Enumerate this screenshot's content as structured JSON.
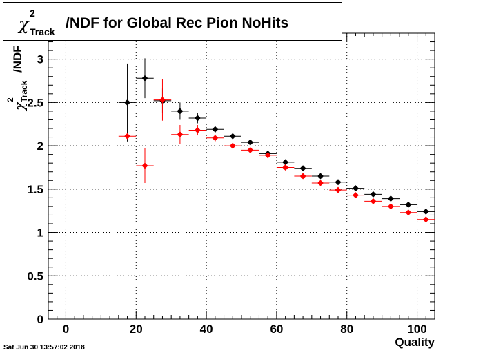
{
  "title": {
    "symbol": "χ",
    "superscript": "2",
    "subscript": "Track",
    "text": "/NDF for Global Rec Pion NoHits"
  },
  "timestamp": "Sat Jun 30 13:57:02 2018",
  "chart_data": {
    "type": "scatter",
    "xlabel": "Quality",
    "ylabel": {
      "symbol": "χ",
      "superscript": "2",
      "subscript": "Track",
      "text": "/NDF"
    },
    "xlim": [
      -5,
      105
    ],
    "ylim": [
      0,
      3.3
    ],
    "xticks": [
      0,
      20,
      40,
      60,
      80,
      100
    ],
    "yticks": [
      0,
      0.5,
      1,
      1.5,
      2,
      2.5,
      3
    ],
    "ytick_labels": [
      "0",
      "0.5",
      "1",
      "1.5",
      "2",
      "2.5",
      "3"
    ],
    "grid": true,
    "x_bin_half_width": 2.5,
    "series": [
      {
        "color": "#000000",
        "points": [
          {
            "x": 17.5,
            "y": 2.5,
            "yerr_lo": 0.45,
            "yerr_hi": 0.45
          },
          {
            "x": 22.5,
            "y": 2.78,
            "yerr_lo": 0.23,
            "yerr_hi": 0.23
          },
          {
            "x": 27.5,
            "y": 2.52,
            "yerr_lo": 0.14,
            "yerr_hi": 0.14
          },
          {
            "x": 32.5,
            "y": 2.4,
            "yerr_lo": 0.1,
            "yerr_hi": 0.1
          },
          {
            "x": 37.5,
            "y": 2.32,
            "yerr_lo": 0.06,
            "yerr_hi": 0.06
          },
          {
            "x": 42.5,
            "y": 2.19,
            "yerr_lo": 0.04,
            "yerr_hi": 0.04
          },
          {
            "x": 47.5,
            "y": 2.11,
            "yerr_lo": 0.03,
            "yerr_hi": 0.03
          },
          {
            "x": 52.5,
            "y": 2.04,
            "yerr_lo": 0.02,
            "yerr_hi": 0.02
          },
          {
            "x": 57.5,
            "y": 1.91,
            "yerr_lo": 0.02,
            "yerr_hi": 0.02
          },
          {
            "x": 62.5,
            "y": 1.81,
            "yerr_lo": 0.02,
            "yerr_hi": 0.02
          },
          {
            "x": 67.5,
            "y": 1.74,
            "yerr_lo": 0.01,
            "yerr_hi": 0.01
          },
          {
            "x": 72.5,
            "y": 1.65,
            "yerr_lo": 0.01,
            "yerr_hi": 0.01
          },
          {
            "x": 77.5,
            "y": 1.58,
            "yerr_lo": 0.01,
            "yerr_hi": 0.01
          },
          {
            "x": 82.5,
            "y": 1.51,
            "yerr_lo": 0.01,
            "yerr_hi": 0.01
          },
          {
            "x": 87.5,
            "y": 1.44,
            "yerr_lo": 0.01,
            "yerr_hi": 0.01
          },
          {
            "x": 92.5,
            "y": 1.39,
            "yerr_lo": 0.01,
            "yerr_hi": 0.01
          },
          {
            "x": 97.5,
            "y": 1.32,
            "yerr_lo": 0.01,
            "yerr_hi": 0.01
          },
          {
            "x": 102.5,
            "y": 1.24,
            "yerr_lo": 0.01,
            "yerr_hi": 0.01
          }
        ]
      },
      {
        "color": "#ff0000",
        "points": [
          {
            "x": 17.5,
            "y": 2.11,
            "yerr_lo": 0.02,
            "yerr_hi": 0.02
          },
          {
            "x": 22.5,
            "y": 1.77,
            "yerr_lo": 0.2,
            "yerr_hi": 0.2
          },
          {
            "x": 27.5,
            "y": 2.53,
            "yerr_lo": 0.24,
            "yerr_hi": 0.24
          },
          {
            "x": 32.5,
            "y": 2.13,
            "yerr_lo": 0.11,
            "yerr_hi": 0.11
          },
          {
            "x": 37.5,
            "y": 2.18,
            "yerr_lo": 0.06,
            "yerr_hi": 0.06
          },
          {
            "x": 42.5,
            "y": 2.09,
            "yerr_lo": 0.04,
            "yerr_hi": 0.04
          },
          {
            "x": 47.5,
            "y": 2.0,
            "yerr_lo": 0.02,
            "yerr_hi": 0.02
          },
          {
            "x": 52.5,
            "y": 1.95,
            "yerr_lo": 0.02,
            "yerr_hi": 0.02
          },
          {
            "x": 57.5,
            "y": 1.89,
            "yerr_lo": 0.02,
            "yerr_hi": 0.02
          },
          {
            "x": 62.5,
            "y": 1.75,
            "yerr_lo": 0.01,
            "yerr_hi": 0.01
          },
          {
            "x": 67.5,
            "y": 1.65,
            "yerr_lo": 0.01,
            "yerr_hi": 0.01
          },
          {
            "x": 72.5,
            "y": 1.57,
            "yerr_lo": 0.01,
            "yerr_hi": 0.01
          },
          {
            "x": 77.5,
            "y": 1.49,
            "yerr_lo": 0.01,
            "yerr_hi": 0.01
          },
          {
            "x": 82.5,
            "y": 1.43,
            "yerr_lo": 0.01,
            "yerr_hi": 0.01
          },
          {
            "x": 87.5,
            "y": 1.36,
            "yerr_lo": 0.01,
            "yerr_hi": 0.01
          },
          {
            "x": 92.5,
            "y": 1.3,
            "yerr_lo": 0.01,
            "yerr_hi": 0.01
          },
          {
            "x": 97.5,
            "y": 1.23,
            "yerr_lo": 0.01,
            "yerr_hi": 0.01
          },
          {
            "x": 102.5,
            "y": 1.15,
            "yerr_lo": 0.01,
            "yerr_hi": 0.01
          }
        ]
      }
    ]
  }
}
